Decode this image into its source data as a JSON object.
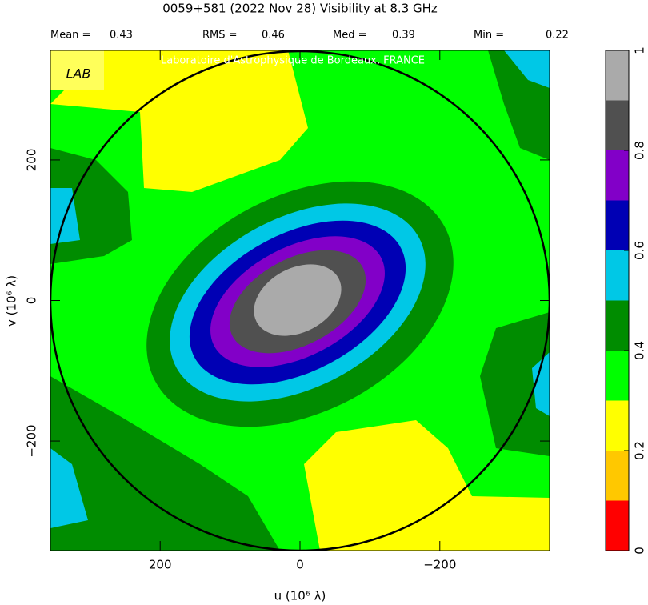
{
  "title": "0059+581   (2022 Nov 28)   Visibility at  8.3 GHz",
  "stats": [
    {
      "label": "Mean =",
      "value": 0.43
    },
    {
      "label": "RMS =",
      "value": 0.46
    },
    {
      "label": "Med =",
      "value": 0.39
    },
    {
      "label": "Min =",
      "value": 0.22
    }
  ],
  "credit": "Laboratoire d'Astrophysique de Bordeaux, FRANCE",
  "logo": "LAB",
  "chart_data": {
    "type": "contour",
    "xlabel": "u  (10⁶ λ)",
    "ylabel": "v  (10⁶ λ)",
    "xlim": [
      357,
      -357
    ],
    "ylim": [
      -356,
      356
    ],
    "xticks": [
      200,
      0,
      {
        "value": -200,
        "label": "−200"
      }
    ],
    "yticks": [
      {
        "value": -200,
        "label": "−200"
      },
      0,
      200
    ],
    "colorbar": {
      "levels": [
        0,
        0.1,
        0.2,
        0.3,
        0.4,
        0.5,
        0.6,
        0.7,
        0.8,
        0.9,
        1
      ],
      "colors": [
        "#ff0000",
        "#ffc800",
        "#ffff00",
        "#00ff00",
        "#008c00",
        "#00c8e6",
        "#0000b4",
        "#8200c8",
        "#505050",
        "#aaaaaa"
      ],
      "ticks": [
        0,
        0.2,
        0.4,
        0.6,
        0.8,
        1
      ]
    }
  }
}
